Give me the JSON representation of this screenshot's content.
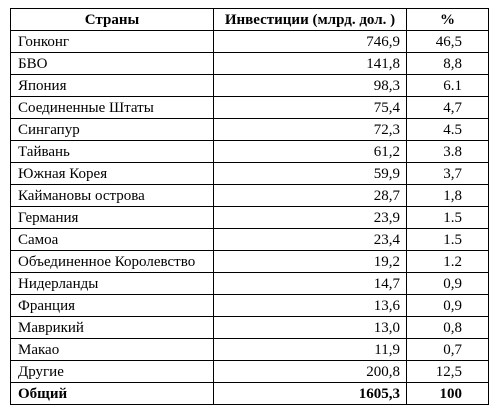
{
  "table": {
    "headers": {
      "country": "Страны",
      "investment": "Инвестиции (млрд. дол. )",
      "percent": "%"
    },
    "rows": [
      {
        "country": "Гонконг",
        "investment": "746,9",
        "percent": "46,5"
      },
      {
        "country": "БВО",
        "investment": "141,8",
        "percent": "8,8"
      },
      {
        "country": "Япония",
        "investment": "98,3",
        "percent": "6.1"
      },
      {
        "country": "Соединенные Штаты",
        "investment": "75,4",
        "percent": "4,7"
      },
      {
        "country": "Сингапур",
        "investment": "72,3",
        "percent": "4.5"
      },
      {
        "country": "Тайвань",
        "investment": "61,2",
        "percent": "3.8"
      },
      {
        "country": "Южная Корея",
        "investment": "59,9",
        "percent": "3,7"
      },
      {
        "country": "Каймановы острова",
        "investment": "28,7",
        "percent": "1,8"
      },
      {
        "country": "Германия",
        "investment": "23,9",
        "percent": "1.5"
      },
      {
        "country": "Самоа",
        "investment": "23,4",
        "percent": "1.5"
      },
      {
        "country": "Объединенное Королевство",
        "investment": "19,2",
        "percent": "1.2"
      },
      {
        "country": "Нидерланды",
        "investment": "14,7",
        "percent": "0,9"
      },
      {
        "country": "Франция",
        "investment": "13,6",
        "percent": "0,9"
      },
      {
        "country": "Маврикий",
        "investment": "13,0",
        "percent": "0,8"
      },
      {
        "country": "Макао",
        "investment": "11,9",
        "percent": "0,7"
      },
      {
        "country": "Другие",
        "investment": "200,8",
        "percent": "12,5"
      }
    ],
    "total": {
      "country": "Общий",
      "investment": "1605,3",
      "percent": "100"
    }
  }
}
